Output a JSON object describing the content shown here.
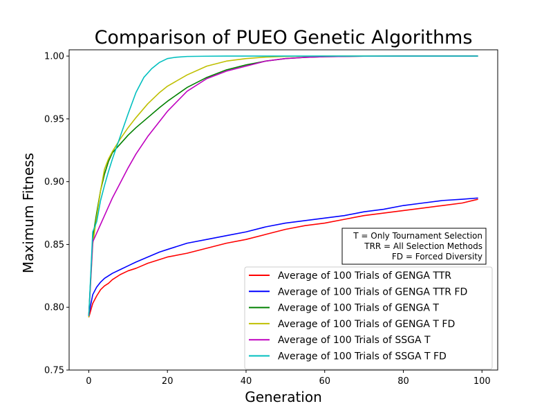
{
  "chart_data": {
    "type": "line",
    "title": "Comparison of PUEO Genetic Algorithms",
    "xlabel": "Generation",
    "ylabel": "Maximum Fitness",
    "xlim": [
      -5,
      104
    ],
    "ylim": [
      0.75,
      1.005
    ],
    "xticks": [
      0,
      20,
      40,
      60,
      80,
      100
    ],
    "yticks": [
      0.75,
      0.8,
      0.85,
      0.9,
      0.95,
      1.0
    ],
    "ytick_labels": [
      "0.75",
      "0.80",
      "0.85",
      "0.90",
      "0.95",
      "1.00"
    ],
    "grid": false,
    "legend_position": "lower-right",
    "annotation": {
      "lines": [
        "T = Only Tournament Selection",
        "TRR = All Selection Methods",
        "FD = Forced Diversity"
      ]
    },
    "series": [
      {
        "name": "Average of 100 Trials of GENGA TTR",
        "color": "#ff0000",
        "x": [
          0,
          1,
          2,
          3,
          4,
          5,
          6,
          8,
          10,
          12,
          15,
          18,
          20,
          25,
          30,
          35,
          40,
          45,
          50,
          55,
          60,
          65,
          70,
          75,
          80,
          85,
          90,
          95,
          99
        ],
        "y": [
          0.792,
          0.803,
          0.809,
          0.814,
          0.817,
          0.819,
          0.822,
          0.826,
          0.829,
          0.831,
          0.835,
          0.838,
          0.84,
          0.843,
          0.847,
          0.851,
          0.854,
          0.858,
          0.862,
          0.865,
          0.867,
          0.87,
          0.873,
          0.875,
          0.877,
          0.879,
          0.881,
          0.883,
          0.886
        ]
      },
      {
        "name": "Average of 100 Trials of GENGA TTR FD",
        "color": "#0000ff",
        "x": [
          0,
          1,
          2,
          3,
          4,
          5,
          6,
          8,
          10,
          12,
          15,
          18,
          20,
          25,
          30,
          35,
          40,
          45,
          50,
          55,
          60,
          65,
          70,
          75,
          80,
          85,
          90,
          95,
          99
        ],
        "y": [
          0.794,
          0.81,
          0.816,
          0.82,
          0.823,
          0.825,
          0.827,
          0.83,
          0.833,
          0.836,
          0.84,
          0.844,
          0.846,
          0.851,
          0.854,
          0.857,
          0.86,
          0.864,
          0.867,
          0.869,
          0.871,
          0.873,
          0.876,
          0.878,
          0.881,
          0.883,
          0.885,
          0.886,
          0.887
        ]
      },
      {
        "name": "Average of 100 Trials of GENGA T",
        "color": "#008000",
        "x": [
          0,
          1,
          2,
          3,
          4,
          5,
          6,
          8,
          10,
          12,
          15,
          18,
          20,
          25,
          30,
          35,
          40,
          45,
          50,
          55,
          60,
          70,
          80,
          90,
          99
        ],
        "y": [
          0.793,
          0.855,
          0.875,
          0.893,
          0.906,
          0.916,
          0.923,
          0.93,
          0.937,
          0.943,
          0.951,
          0.959,
          0.964,
          0.975,
          0.983,
          0.989,
          0.993,
          0.996,
          0.998,
          0.999,
          0.9995,
          0.9999,
          1.0,
          1.0,
          1.0
        ]
      },
      {
        "name": "Average of 100 Trials of GENGA T FD",
        "color": "#bfbf00",
        "x": [
          0,
          1,
          2,
          3,
          4,
          5,
          6,
          8,
          10,
          12,
          15,
          18,
          20,
          25,
          30,
          35,
          40,
          45,
          50,
          55,
          60,
          70,
          80,
          90,
          99
        ],
        "y": [
          0.792,
          0.85,
          0.872,
          0.893,
          0.91,
          0.918,
          0.924,
          0.934,
          0.943,
          0.951,
          0.962,
          0.971,
          0.976,
          0.985,
          0.992,
          0.996,
          0.998,
          0.9992,
          0.9997,
          0.9999,
          1.0,
          1.0,
          1.0,
          1.0,
          1.0
        ]
      },
      {
        "name": "Average of 100 Trials of SSGA T",
        "color": "#bf00bf",
        "x": [
          0,
          1,
          2,
          3,
          4,
          5,
          6,
          8,
          10,
          12,
          15,
          18,
          20,
          25,
          30,
          35,
          40,
          45,
          50,
          55,
          60,
          70,
          80,
          90,
          99
        ],
        "y": [
          0.793,
          0.852,
          0.859,
          0.866,
          0.873,
          0.88,
          0.887,
          0.899,
          0.911,
          0.922,
          0.936,
          0.948,
          0.956,
          0.972,
          0.982,
          0.988,
          0.992,
          0.996,
          0.998,
          0.999,
          0.9995,
          0.9999,
          1.0,
          1.0,
          1.0
        ]
      },
      {
        "name": "Average of 100 Trials of SSGA T FD",
        "color": "#00bfbf",
        "x": [
          0,
          1,
          2,
          3,
          4,
          5,
          6,
          8,
          10,
          12,
          14,
          16,
          18,
          20,
          22,
          25,
          30,
          35,
          40,
          50,
          60,
          70,
          80,
          90,
          99
        ],
        "y": [
          0.793,
          0.86,
          0.868,
          0.885,
          0.897,
          0.908,
          0.918,
          0.936,
          0.954,
          0.971,
          0.983,
          0.99,
          0.995,
          0.998,
          0.999,
          0.9997,
          0.9999,
          1.0,
          1.0,
          1.0,
          1.0,
          1.0,
          1.0,
          1.0,
          1.0
        ]
      }
    ]
  }
}
